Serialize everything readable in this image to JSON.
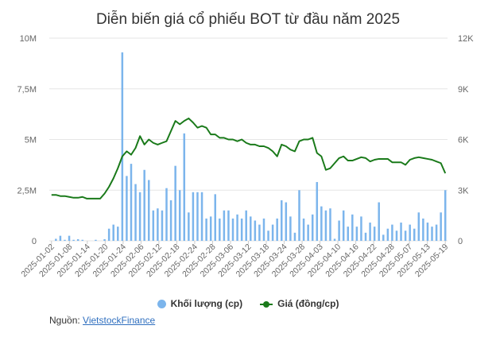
{
  "title": "Diễn biến giá cổ phiếu BOT từ đầu năm 2025",
  "source": {
    "label": "Nguồn:",
    "link_text": "VietstockFinance"
  },
  "colors": {
    "volume": "#7cb5ec",
    "price": "#1a7a1a",
    "grid": "#e6e6e6"
  },
  "chart_data": {
    "type": "bar+line",
    "title": "Diễn biến giá cổ phiếu BOT từ đầu năm 2025",
    "y_left": {
      "ticks": [
        "0",
        "2,5M",
        "5M",
        "7,5M",
        "10M"
      ],
      "range": [
        0,
        10000000
      ]
    },
    "y_right": {
      "ticks": [
        "0",
        "3K",
        "6K",
        "9K",
        "12K"
      ],
      "range": [
        0,
        12000
      ]
    },
    "x_tick_labels": [
      "2025-01-02",
      "2025-01-08",
      "2025-01-14",
      "2025-01-20",
      "2025-01-24",
      "2025-02-06",
      "2025-02-12",
      "2025-02-18",
      "2025-02-24",
      "2025-02-28",
      "2025-03-06",
      "2025-03-12",
      "2025-03-18",
      "2025-03-24",
      "2025-03-28",
      "2025-04-03",
      "2025-04-10",
      "2025-04-16",
      "2025-04-22",
      "2025-04-28",
      "2025-05-07",
      "2025-05-13",
      "2025-05-19"
    ],
    "series": [
      {
        "name": "Khối lượng (cp)",
        "type": "bar",
        "axis": "left",
        "values": [
          0,
          100000,
          250000,
          50000,
          250000,
          50000,
          80000,
          50000,
          0,
          0,
          50000,
          0,
          80000,
          600000,
          800000,
          700000,
          9300000,
          3200000,
          3800000,
          2800000,
          2400000,
          3500000,
          3000000,
          1500000,
          1600000,
          1500000,
          2600000,
          2000000,
          3700000,
          2500000,
          5300000,
          1400000,
          2400000,
          2400000,
          2400000,
          1100000,
          1200000,
          2300000,
          1100000,
          1500000,
          1500000,
          1100000,
          1300000,
          1100000,
          1500000,
          1200000,
          1000000,
          800000,
          1100000,
          500000,
          800000,
          1100000,
          2000000,
          1900000,
          1200000,
          400000,
          2500000,
          1100000,
          800000,
          1300000,
          2900000,
          1700000,
          1500000,
          1600000,
          100000,
          1000000,
          1500000,
          700000,
          1300000,
          700000,
          1200000,
          400000,
          900000,
          700000,
          1900000,
          300000,
          600000,
          800000,
          500000,
          900000,
          500000,
          800000,
          600000,
          1400000,
          1100000,
          900000,
          700000,
          800000,
          1400000,
          2500000
        ]
      },
      {
        "name": "Giá (đồng/cp)",
        "type": "line",
        "axis": "right",
        "values": [
          2720,
          2720,
          2650,
          2650,
          2600,
          2550,
          2550,
          2600,
          2500,
          2500,
          2500,
          2500,
          2800,
          3200,
          3700,
          4300,
          5000,
          5300,
          5100,
          5500,
          6200,
          5700,
          6000,
          5800,
          5700,
          5800,
          5900,
          6500,
          7100,
          6900,
          7100,
          7250,
          7000,
          6700,
          6800,
          6700,
          6300,
          6300,
          6100,
          6100,
          6000,
          6000,
          5900,
          6000,
          5800,
          5700,
          5700,
          5600,
          5600,
          5500,
          5300,
          5000,
          5700,
          5600,
          5400,
          5300,
          5900,
          6000,
          6000,
          6100,
          5200,
          5000,
          4200,
          4300,
          4600,
          4900,
          5000,
          4750,
          4750,
          4850,
          4950,
          4900,
          4700,
          4800,
          4850,
          4850,
          4850,
          4650,
          4650,
          4650,
          4500,
          4800,
          4900,
          4950,
          4900,
          4850,
          4800,
          4700,
          4600,
          4000
        ]
      }
    ],
    "legend_position": "bottom",
    "grid": true
  }
}
